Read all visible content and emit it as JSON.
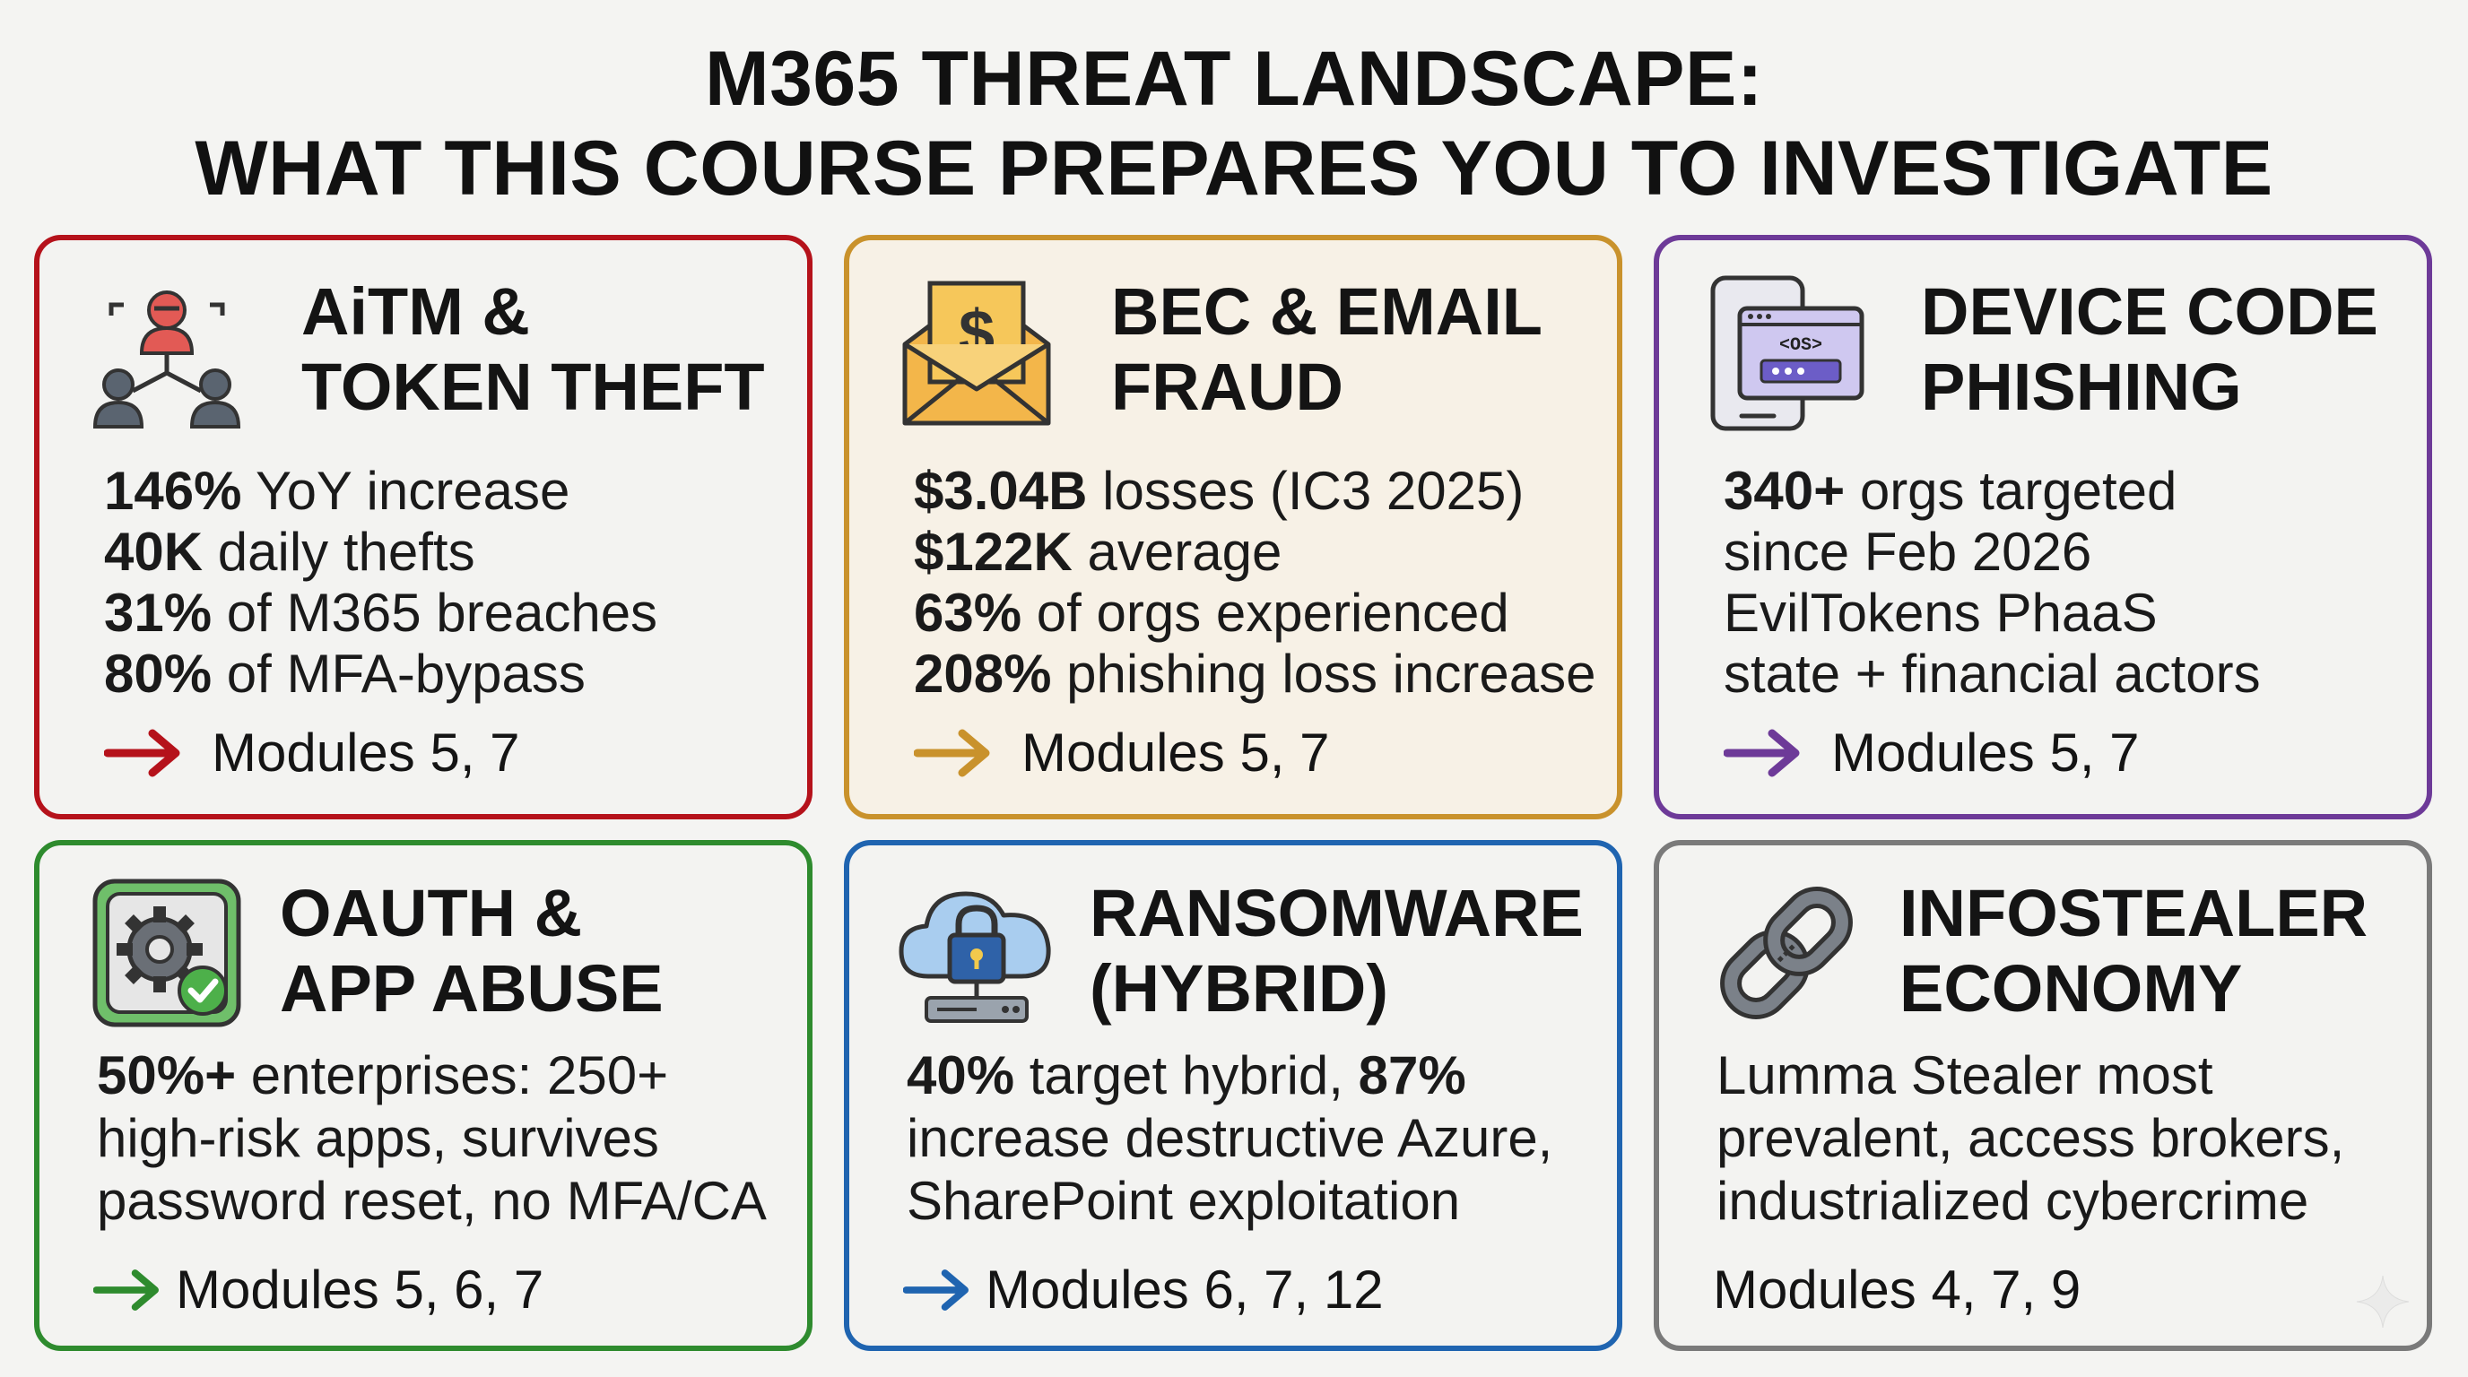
{
  "title": {
    "line1": "M365 THREAT LANDSCAPE:",
    "line2": "WHAT THIS COURSE PREPARES YOU TO INVESTIGATE"
  },
  "colors": {
    "red": "#b5121b",
    "orange": "#c9922c",
    "purple": "#6d3a98",
    "green": "#2e8b2e",
    "blue": "#1f64b0",
    "gray": "#7a7a7a"
  },
  "cards": [
    {
      "icon": "hacker-network-icon",
      "title": [
        "AiTM &",
        "TOKEN THEFT"
      ],
      "stats": [
        {
          "bold": "146%",
          "text": " YoY increase"
        },
        {
          "bold": "40K",
          "text": " daily thefts"
        },
        {
          "bold": "31%",
          "text": " of M365 breaches"
        },
        {
          "bold": "80%",
          "text": " of MFA-bypass"
        }
      ],
      "modules": "Modules 5, 7"
    },
    {
      "icon": "envelope-dollar-icon",
      "title": [
        "BEC & EMAIL",
        "FRAUD"
      ],
      "stats": [
        {
          "bold": "$3.04B",
          "text": " losses (IC3 2025)"
        },
        {
          "bold": "$122K",
          "text": " average"
        },
        {
          "bold": "63%",
          "text": " of orgs experienced"
        },
        {
          "bold": "208%",
          "text": " phishing loss increase"
        }
      ],
      "modules": "Modules 5, 7"
    },
    {
      "icon": "device-code-icon",
      "icon_label": "<OS>",
      "title": [
        "DEVICE CODE",
        "PHISHING"
      ],
      "stats": [
        {
          "bold": "340+",
          "text": " orgs targeted"
        },
        {
          "bold": "",
          "text": "since Feb 2026"
        },
        {
          "bold": "",
          "text": "EvilTokens PhaaS"
        },
        {
          "bold": "",
          "text": "state + financial actors"
        }
      ],
      "modules": "Modules 5, 7"
    },
    {
      "icon": "gear-check-icon",
      "title": [
        "OAUTH &",
        "APP ABUSE"
      ],
      "body": [
        [
          {
            "bold": "50%+",
            "text": " enterprises: 250+"
          }
        ],
        [
          {
            "bold": "",
            "text": "high-risk apps, survives"
          }
        ],
        [
          {
            "bold": "",
            "text": "password reset, no MFA/CA"
          }
        ]
      ],
      "modules": "Modules 5, 6, 7"
    },
    {
      "icon": "cloud-lock-icon",
      "title": [
        "RANSOMWARE",
        "(HYBRID)"
      ],
      "body": [
        [
          {
            "bold": "40%",
            "text": " target hybrid, "
          },
          {
            "bold": "87%",
            "text": ""
          }
        ],
        [
          {
            "bold": "",
            "text": "increase destructive Azure,"
          }
        ],
        [
          {
            "bold": "",
            "text": "SharePoint exploitation"
          }
        ]
      ],
      "modules": "Modules 6, 7, 12"
    },
    {
      "icon": "chain-link-icon",
      "title": [
        "INFOSTEALER",
        "ECONOMY"
      ],
      "body": [
        [
          {
            "bold": "",
            "text": "Lumma Stealer most"
          }
        ],
        [
          {
            "bold": "",
            "text": "prevalent, access brokers,"
          }
        ],
        [
          {
            "bold": "",
            "text": "industrialized cybercrime"
          }
        ]
      ],
      "modules": "Modules 4, 7, 9"
    }
  ]
}
